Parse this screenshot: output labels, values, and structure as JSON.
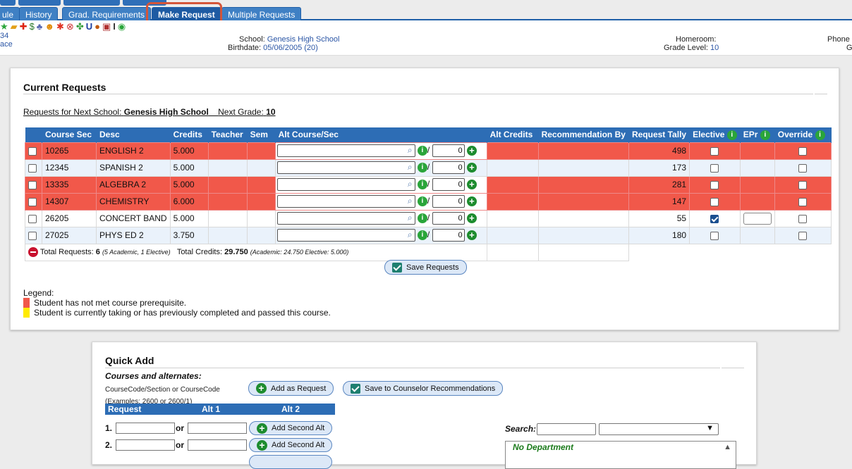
{
  "tabs": [
    {
      "label": "ule"
    },
    {
      "label": "History"
    },
    {
      "label": "Grad. Requirements"
    },
    {
      "label": "Make Request"
    },
    {
      "label": "Multiple Requests"
    }
  ],
  "header": {
    "left_line1": "34",
    "left_line2": "ace",
    "school_label": "School:",
    "school_value": "Genesis High School",
    "birthdate_label": "Birthdate:",
    "birthdate_value": "05/06/2005 (20)",
    "homeroom_label": "Homeroom:",
    "grade_label": "Grade Level:",
    "grade_value": "10",
    "phone_label": "Phone",
    "phone_value": "G"
  },
  "current_requests": {
    "title": "Current Requests",
    "next_school_label": "Requests for Next School:",
    "next_school_value": "Genesis High School",
    "next_grade_label": "Next Grade:",
    "next_grade_value": "10",
    "columns": [
      "Course Sec",
      "Desc",
      "Credits",
      "Teacher",
      "Sem",
      "Alt Course/Sec",
      "Alt Credits",
      "Recommendation By",
      "Request Tally",
      "Elective",
      "EPr",
      "Override"
    ],
    "rows": [
      {
        "course_sec": "10265",
        "desc": "ENGLISH 2",
        "credits": "5.000",
        "alt_count": "0",
        "tally": "498",
        "elective": false,
        "override": false,
        "status": "red"
      },
      {
        "course_sec": "12345",
        "desc": "SPANISH 2",
        "credits": "5.000",
        "alt_count": "0",
        "tally": "173",
        "elective": false,
        "override": false,
        "status": "alt"
      },
      {
        "course_sec": "13335",
        "desc": "ALGEBRA 2",
        "credits": "5.000",
        "alt_count": "0",
        "tally": "281",
        "elective": false,
        "override": false,
        "status": "red"
      },
      {
        "course_sec": "14307",
        "desc": "CHEMISTRY",
        "credits": "6.000",
        "alt_count": "0",
        "tally": "147",
        "elective": false,
        "override": false,
        "status": "red"
      },
      {
        "course_sec": "26205",
        "desc": "CONCERT BAND",
        "credits": "5.000",
        "alt_count": "0",
        "tally": "55",
        "elective": true,
        "override": false,
        "status": "plain"
      },
      {
        "course_sec": "27025",
        "desc": "PHYS ED 2",
        "credits": "3.750",
        "alt_count": "0",
        "tally": "180",
        "elective": false,
        "override": false,
        "status": "alt"
      }
    ],
    "total_requests_label": "Total Requests:",
    "total_requests_value": "6",
    "total_requests_detail": "(5 Academic, 1 Elective)",
    "total_credits_label": "Total Credits:",
    "total_credits_value": "29.750",
    "total_credits_detail": "(Academic: 24.750 Elective: 5.000)",
    "save_button": "Save Requests",
    "alt_separator": "/"
  },
  "legend": {
    "title": "Legend:",
    "items": [
      {
        "color": "#f1584a",
        "text": "Student has not met course prerequisite."
      },
      {
        "color": "#ffeb00",
        "text": "Student is currently taking or has previously completed and passed this course."
      }
    ]
  },
  "quick_add": {
    "title": "Quick Add",
    "subtitle": "Courses and alternates:",
    "code_hint": "CourseCode/Section or CourseCode",
    "examples": "(Examples: 2600 or 2600/1)",
    "add_request_button": "Add as Request",
    "save_counselor_button": "Save to Counselor Recommendations",
    "head_request": "Request",
    "head_alt1": "Alt 1",
    "head_alt2": "Alt 2",
    "rows": [
      {
        "num": "1.",
        "or": "or",
        "button": "Add Second Alt"
      },
      {
        "num": "2.",
        "or": "or",
        "button": "Add Second Alt"
      }
    ],
    "search_label": "Search:",
    "department": "No Department"
  },
  "colors": {
    "accent": "#2d6db5",
    "prereq_red": "#f1584a",
    "completed_yellow": "#ffeb00",
    "highlight_ring": "#d3553a"
  }
}
